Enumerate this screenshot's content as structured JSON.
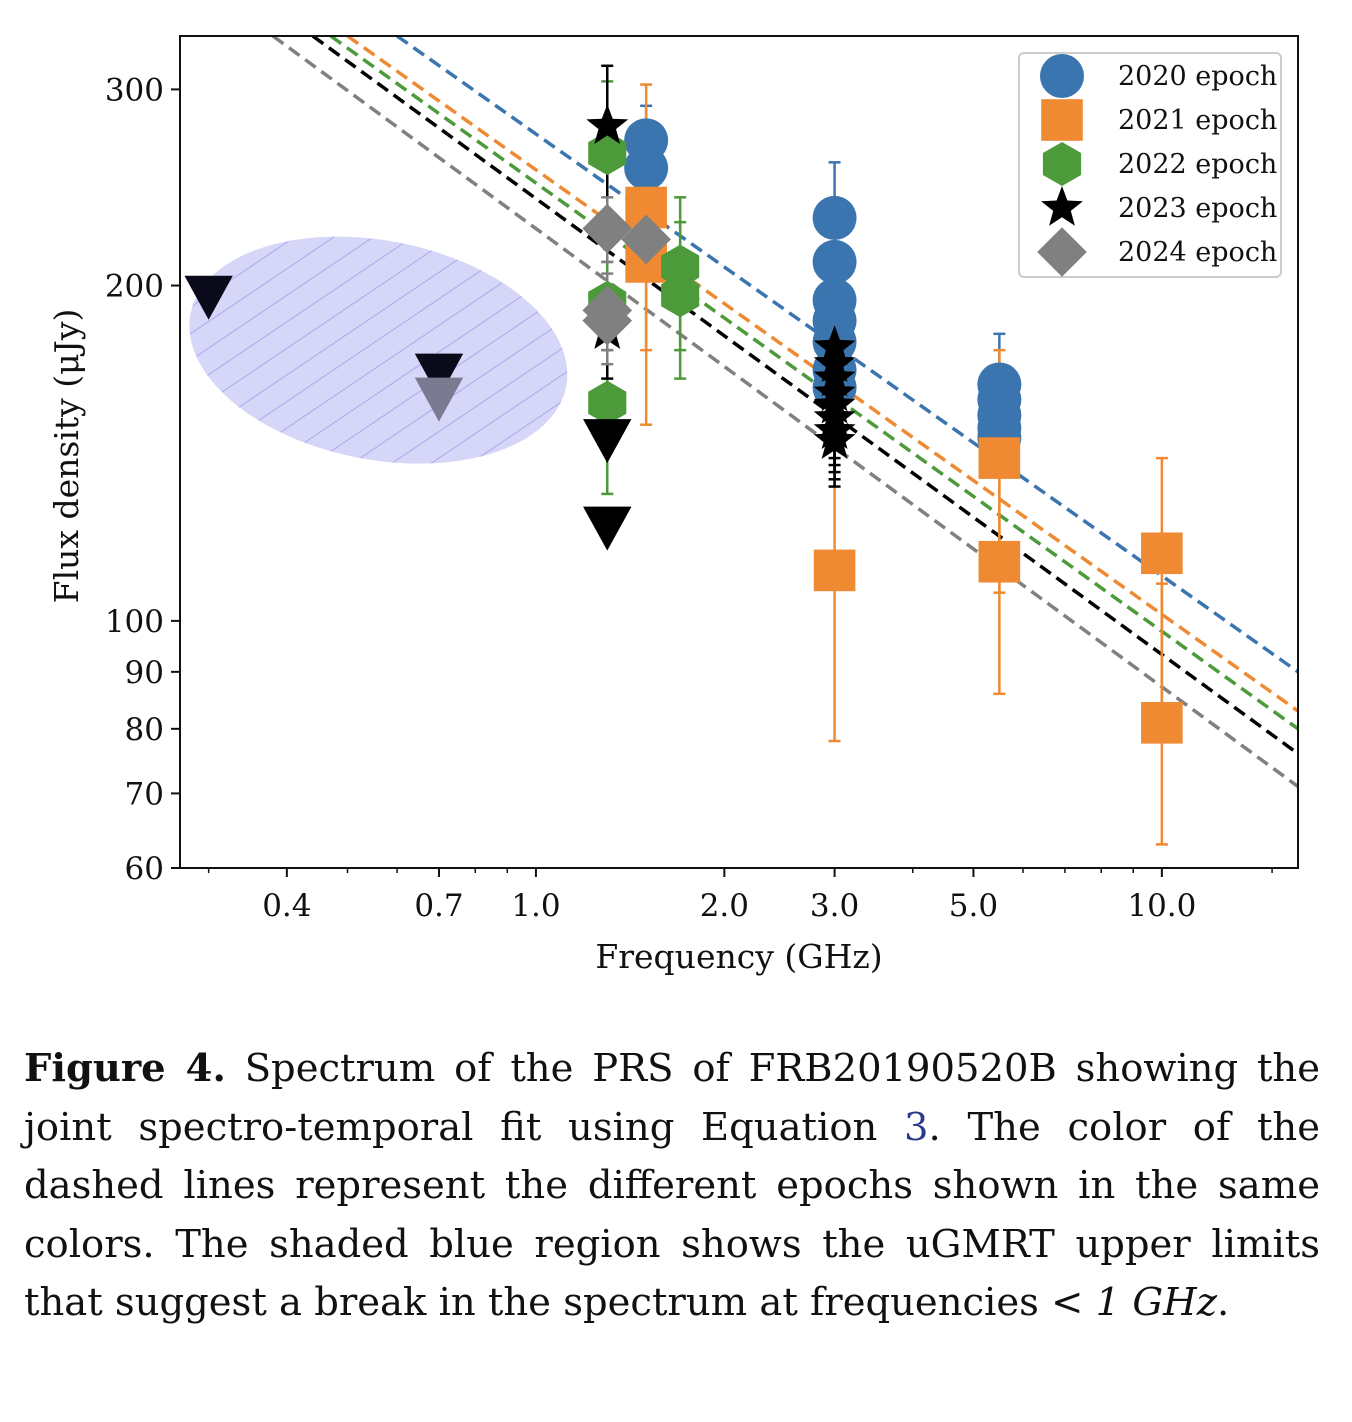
{
  "chart_data": {
    "type": "scatter",
    "title": "",
    "xlabel": "Frequency (GHz)",
    "ylabel": "Flux density (μJy)",
    "xscale": "log",
    "yscale": "log",
    "xlim": [
      0.27,
      16.5
    ],
    "ylim": [
      60,
      335
    ],
    "x_ticks": [
      0.4,
      0.7,
      1.0,
      2.0,
      3.0,
      5.0,
      10.0
    ],
    "x_tick_labels": [
      "0.4",
      "0.7",
      "1.0",
      "2.0",
      "3.0",
      "5.0",
      "10.0"
    ],
    "y_ticks": [
      60,
      70,
      80,
      90,
      100,
      200,
      300
    ],
    "y_tick_labels": [
      "60",
      "70",
      "80",
      "90",
      "100",
      "200",
      "300"
    ],
    "grid": false,
    "legend_position": "top-right",
    "series": [
      {
        "name": "2020 epoch",
        "color": "#3b75af",
        "marker": "circle",
        "points": [
          {
            "x": 1.5,
            "y": 270,
            "err": [
              245,
              290
            ]
          },
          {
            "x": 1.5,
            "y": 255
          },
          {
            "x": 3.0,
            "y": 230,
            "err": [
              170,
              258
            ]
          },
          {
            "x": 3.0,
            "y": 210
          },
          {
            "x": 3.0,
            "y": 194
          },
          {
            "x": 3.0,
            "y": 186
          },
          {
            "x": 3.0,
            "y": 178
          },
          {
            "x": 3.0,
            "y": 168
          },
          {
            "x": 3.0,
            "y": 162
          },
          {
            "x": 5.5,
            "y": 163,
            "err": [
              140,
              181
            ]
          },
          {
            "x": 5.5,
            "y": 158
          },
          {
            "x": 5.5,
            "y": 153
          },
          {
            "x": 5.5,
            "y": 149
          },
          {
            "x": 5.5,
            "y": 146
          }
        ],
        "fit": {
          "x": [
            0.6,
            16.5
          ],
          "y": [
            335,
            90
          ]
        }
      },
      {
        "name": "2021 epoch",
        "color": "#ef8a33",
        "marker": "square",
        "points": [
          {
            "x": 1.5,
            "y": 235,
            "err": [
              150,
              303
            ]
          },
          {
            "x": 1.5,
            "y": 210,
            "err": [
              175,
              280
            ]
          },
          {
            "x": 3.0,
            "y": 111,
            "err": [
              78,
              150
            ]
          },
          {
            "x": 5.5,
            "y": 140,
            "err": [
              106,
              175
            ]
          },
          {
            "x": 5.5,
            "y": 113,
            "err": [
              86,
              142
            ]
          },
          {
            "x": 10.0,
            "y": 115,
            "err": [
              81,
              140
            ]
          },
          {
            "x": 10.0,
            "y": 81,
            "err": [
              63,
              108
            ]
          }
        ],
        "fit": {
          "x": [
            0.5,
            16.5
          ],
          "y": [
            335,
            83
          ]
        }
      },
      {
        "name": "2022 epoch",
        "color": "#4c9a3a",
        "marker": "hexagon",
        "points": [
          {
            "x": 1.3,
            "y": 263,
            "err": [
              220,
              305
            ]
          },
          {
            "x": 1.3,
            "y": 193,
            "err": [
              175,
              210
            ]
          },
          {
            "x": 1.3,
            "y": 157,
            "err": [
              130,
              185
            ]
          },
          {
            "x": 1.7,
            "y": 208,
            "err": [
              175,
              240
            ]
          },
          {
            "x": 1.7,
            "y": 196,
            "err": [
              165,
              228
            ]
          }
        ],
        "fit": {
          "x": [
            0.47,
            16.5
          ],
          "y": [
            335,
            80
          ]
        }
      },
      {
        "name": "2023 epoch",
        "color": "#000000",
        "marker": "star",
        "points": [
          {
            "x": 1.3,
            "y": 278,
            "err": [
              220,
              315
            ]
          },
          {
            "x": 1.3,
            "y": 182,
            "err": [
              165,
              200
            ]
          },
          {
            "x": 3.0,
            "y": 176,
            "err": [
              160,
              190
            ]
          },
          {
            "x": 3.0,
            "y": 170,
            "err": [
              155,
              185
            ]
          },
          {
            "x": 3.0,
            "y": 165,
            "err": [
              150,
              180
            ]
          },
          {
            "x": 3.0,
            "y": 160,
            "err": [
              140,
              178
            ]
          },
          {
            "x": 3.0,
            "y": 156,
            "err": [
              138,
              175
            ]
          },
          {
            "x": 3.0,
            "y": 152,
            "err": [
              136,
              170
            ]
          },
          {
            "x": 3.0,
            "y": 148,
            "err": [
              134,
              165
            ]
          },
          {
            "x": 3.0,
            "y": 145,
            "err": [
              132,
              160
            ]
          }
        ],
        "fit": {
          "x": [
            0.44,
            16.5
          ],
          "y": [
            335,
            76
          ]
        }
      },
      {
        "name": "2024 epoch",
        "color": "#808080",
        "marker": "diamond",
        "points": [
          {
            "x": 1.3,
            "y": 225,
            "err": [
              210,
              240
            ]
          },
          {
            "x": 1.3,
            "y": 190,
            "err": [
              175,
              205
            ]
          },
          {
            "x": 1.3,
            "y": 186,
            "err": [
              170,
              200
            ]
          },
          {
            "x": 1.5,
            "y": 220,
            "err": [
              205,
              235
            ]
          }
        ],
        "fit": {
          "x": [
            0.38,
            16.5
          ],
          "y": [
            335,
            71
          ]
        }
      }
    ],
    "upper_limits": [
      {
        "x": 0.3,
        "y": 195,
        "color": "#0a0a1a"
      },
      {
        "x": 0.7,
        "y": 166,
        "color": "#0a0a1a"
      },
      {
        "x": 0.7,
        "y": 158,
        "color": "#7a7a90"
      },
      {
        "x": 1.3,
        "y": 145,
        "color": "#000000"
      },
      {
        "x": 1.3,
        "y": 121,
        "color": "#000000"
      }
    ],
    "shaded_region": {
      "description_color": "#d6d6f8",
      "center": [
        0.56,
        175
      ],
      "x_range": [
        0.284,
        1.16
      ],
      "y_range": [
        138,
        217
      ]
    }
  },
  "caption": {
    "label": "Figure 4.",
    "text_before_ref": "Spectrum of the PRS of FRB20190520B showing the joint spectro-temporal fit using Equation",
    "ref": "3",
    "text_after_ref": ". The color of the dashed lines represent the different epochs shown in the same colors. The shaded blue region shows the uGMRT upper limits that suggest a break in the spectrum at frequencies",
    "math": "< 1 GHz",
    "end": "."
  }
}
